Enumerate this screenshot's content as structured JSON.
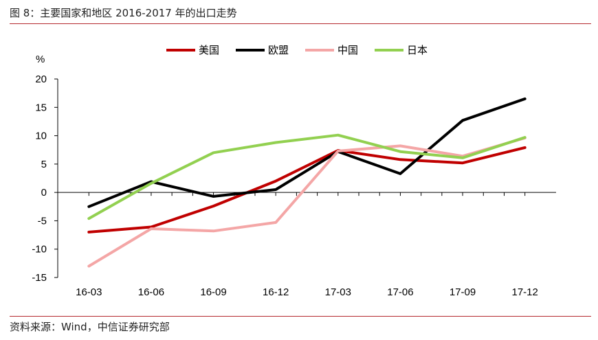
{
  "header": {
    "title": "图 8：主要国家和地区 2016-2017 年的出口走势"
  },
  "footer": {
    "source": "资料来源：Wind，中信证券研究部"
  },
  "chart_data": {
    "type": "line",
    "title": "",
    "xlabel": "",
    "ylabel": "%",
    "ylim": [
      -15,
      20
    ],
    "yticks": [
      -15,
      -10,
      -5,
      0,
      5,
      10,
      15,
      20
    ],
    "grid": false,
    "legend_position": "top",
    "categories": [
      "16-03",
      "16-06",
      "16-09",
      "16-12",
      "17-03",
      "17-06",
      "17-09",
      "17-12"
    ],
    "x_index": [
      0,
      0.6667,
      1,
      1.3333,
      1.6667,
      2,
      2.3333,
      2.6667,
      3,
      3.3333,
      3.6667,
      4,
      4.3333,
      4.6667,
      5,
      5.3333,
      5.6667,
      6,
      6.3333,
      6.6667,
      7
    ],
    "series": [
      {
        "name": "美国",
        "color": "#c00000",
        "x": [
          0,
          1,
          2,
          3,
          4,
          5,
          6,
          7
        ],
        "values": [
          -7.0,
          -6.1,
          -2.4,
          2.0,
          7.4,
          5.8,
          5.2,
          7.9
        ]
      },
      {
        "name": "欧盟",
        "color": "#000000",
        "x": [
          0,
          1,
          2,
          3,
          4,
          5,
          6,
          7
        ],
        "values": [
          -2.5,
          1.9,
          -0.7,
          0.5,
          7.2,
          3.3,
          12.7,
          16.5
        ]
      },
      {
        "name": "中国",
        "color": "#f4a6a6",
        "x": [
          0,
          1,
          2,
          3,
          4,
          5,
          6,
          7
        ],
        "values": [
          -13.0,
          -6.4,
          -6.8,
          -5.3,
          7.3,
          8.2,
          6.4,
          9.6
        ]
      },
      {
        "name": "日本",
        "color": "#92d050",
        "x": [
          0,
          1,
          2,
          3,
          4,
          5,
          6,
          7
        ],
        "values": [
          -4.6,
          1.6,
          7.0,
          8.8,
          10.1,
          7.2,
          6.1,
          9.7
        ]
      }
    ]
  }
}
